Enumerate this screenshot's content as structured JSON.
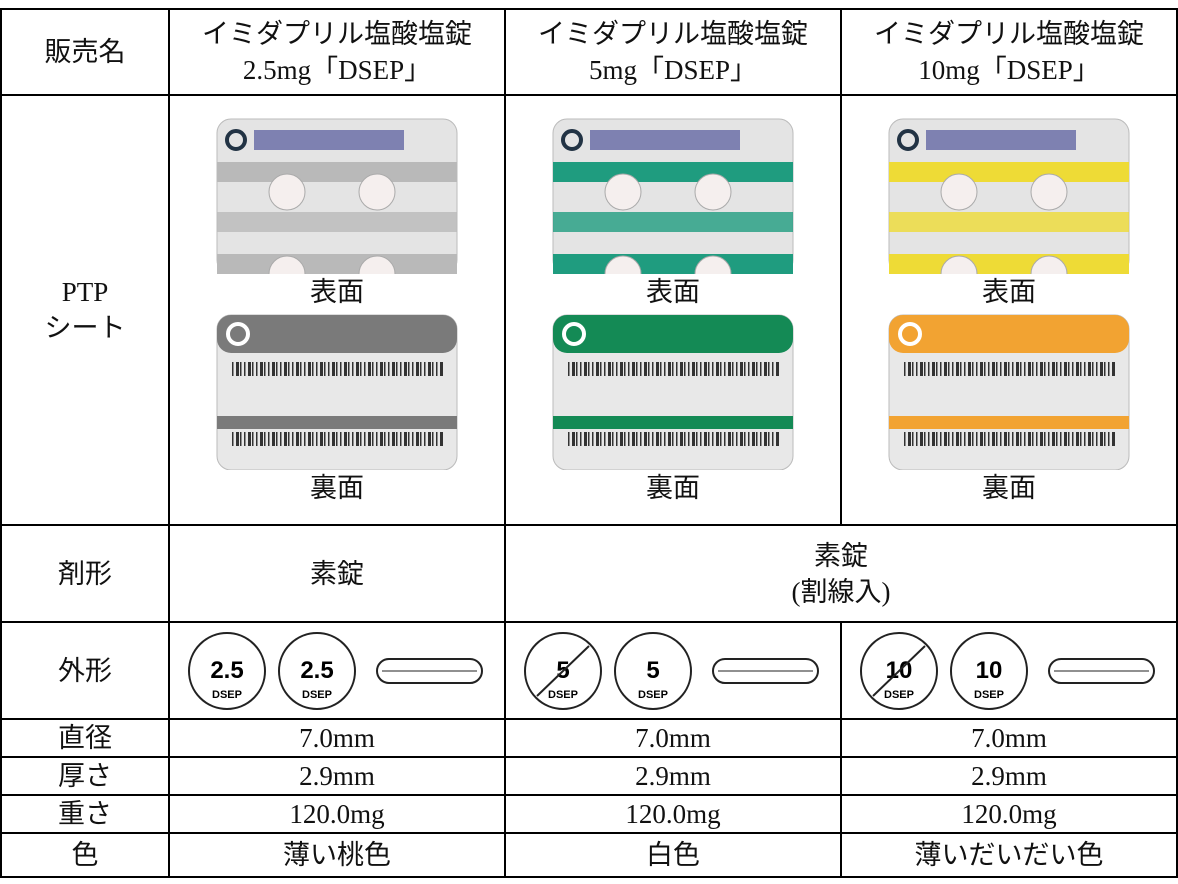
{
  "table": {
    "header": {
      "label": "販売名",
      "products": [
        [
          "イミダプリル塩酸塩錠",
          "2.5mg「DSEP」"
        ],
        [
          "イミダプリル塩酸塩錠",
          "5mg「DSEP」"
        ],
        [
          "イミダプリル塩酸塩錠",
          "10mg「DSEP」"
        ]
      ]
    },
    "ptp": {
      "label": [
        "PTP",
        "シート"
      ],
      "front_caption": "表面",
      "back_caption": "裏面"
    },
    "dosage_form": {
      "label": "剤形",
      "single": "素錠",
      "scored": [
        "素錠",
        "(割線入)"
      ]
    },
    "appearance": {
      "label": "外形",
      "imprints": [
        {
          "number": "2.5",
          "code": "DSEP"
        },
        {
          "number": "5",
          "code": "DSEP"
        },
        {
          "number": "10",
          "code": "DSEP"
        }
      ]
    },
    "specs": [
      [
        "直径",
        "7.0mm",
        "7.0mm",
        "7.0mm"
      ],
      [
        "厚さ",
        "2.9mm",
        "2.9mm",
        "2.9mm"
      ],
      [
        "重さ",
        "120.0mg",
        "120.0mg",
        "120.0mg"
      ],
      [
        "色",
        "薄い桃色",
        "白色",
        "薄いだいだい色"
      ]
    ]
  }
}
